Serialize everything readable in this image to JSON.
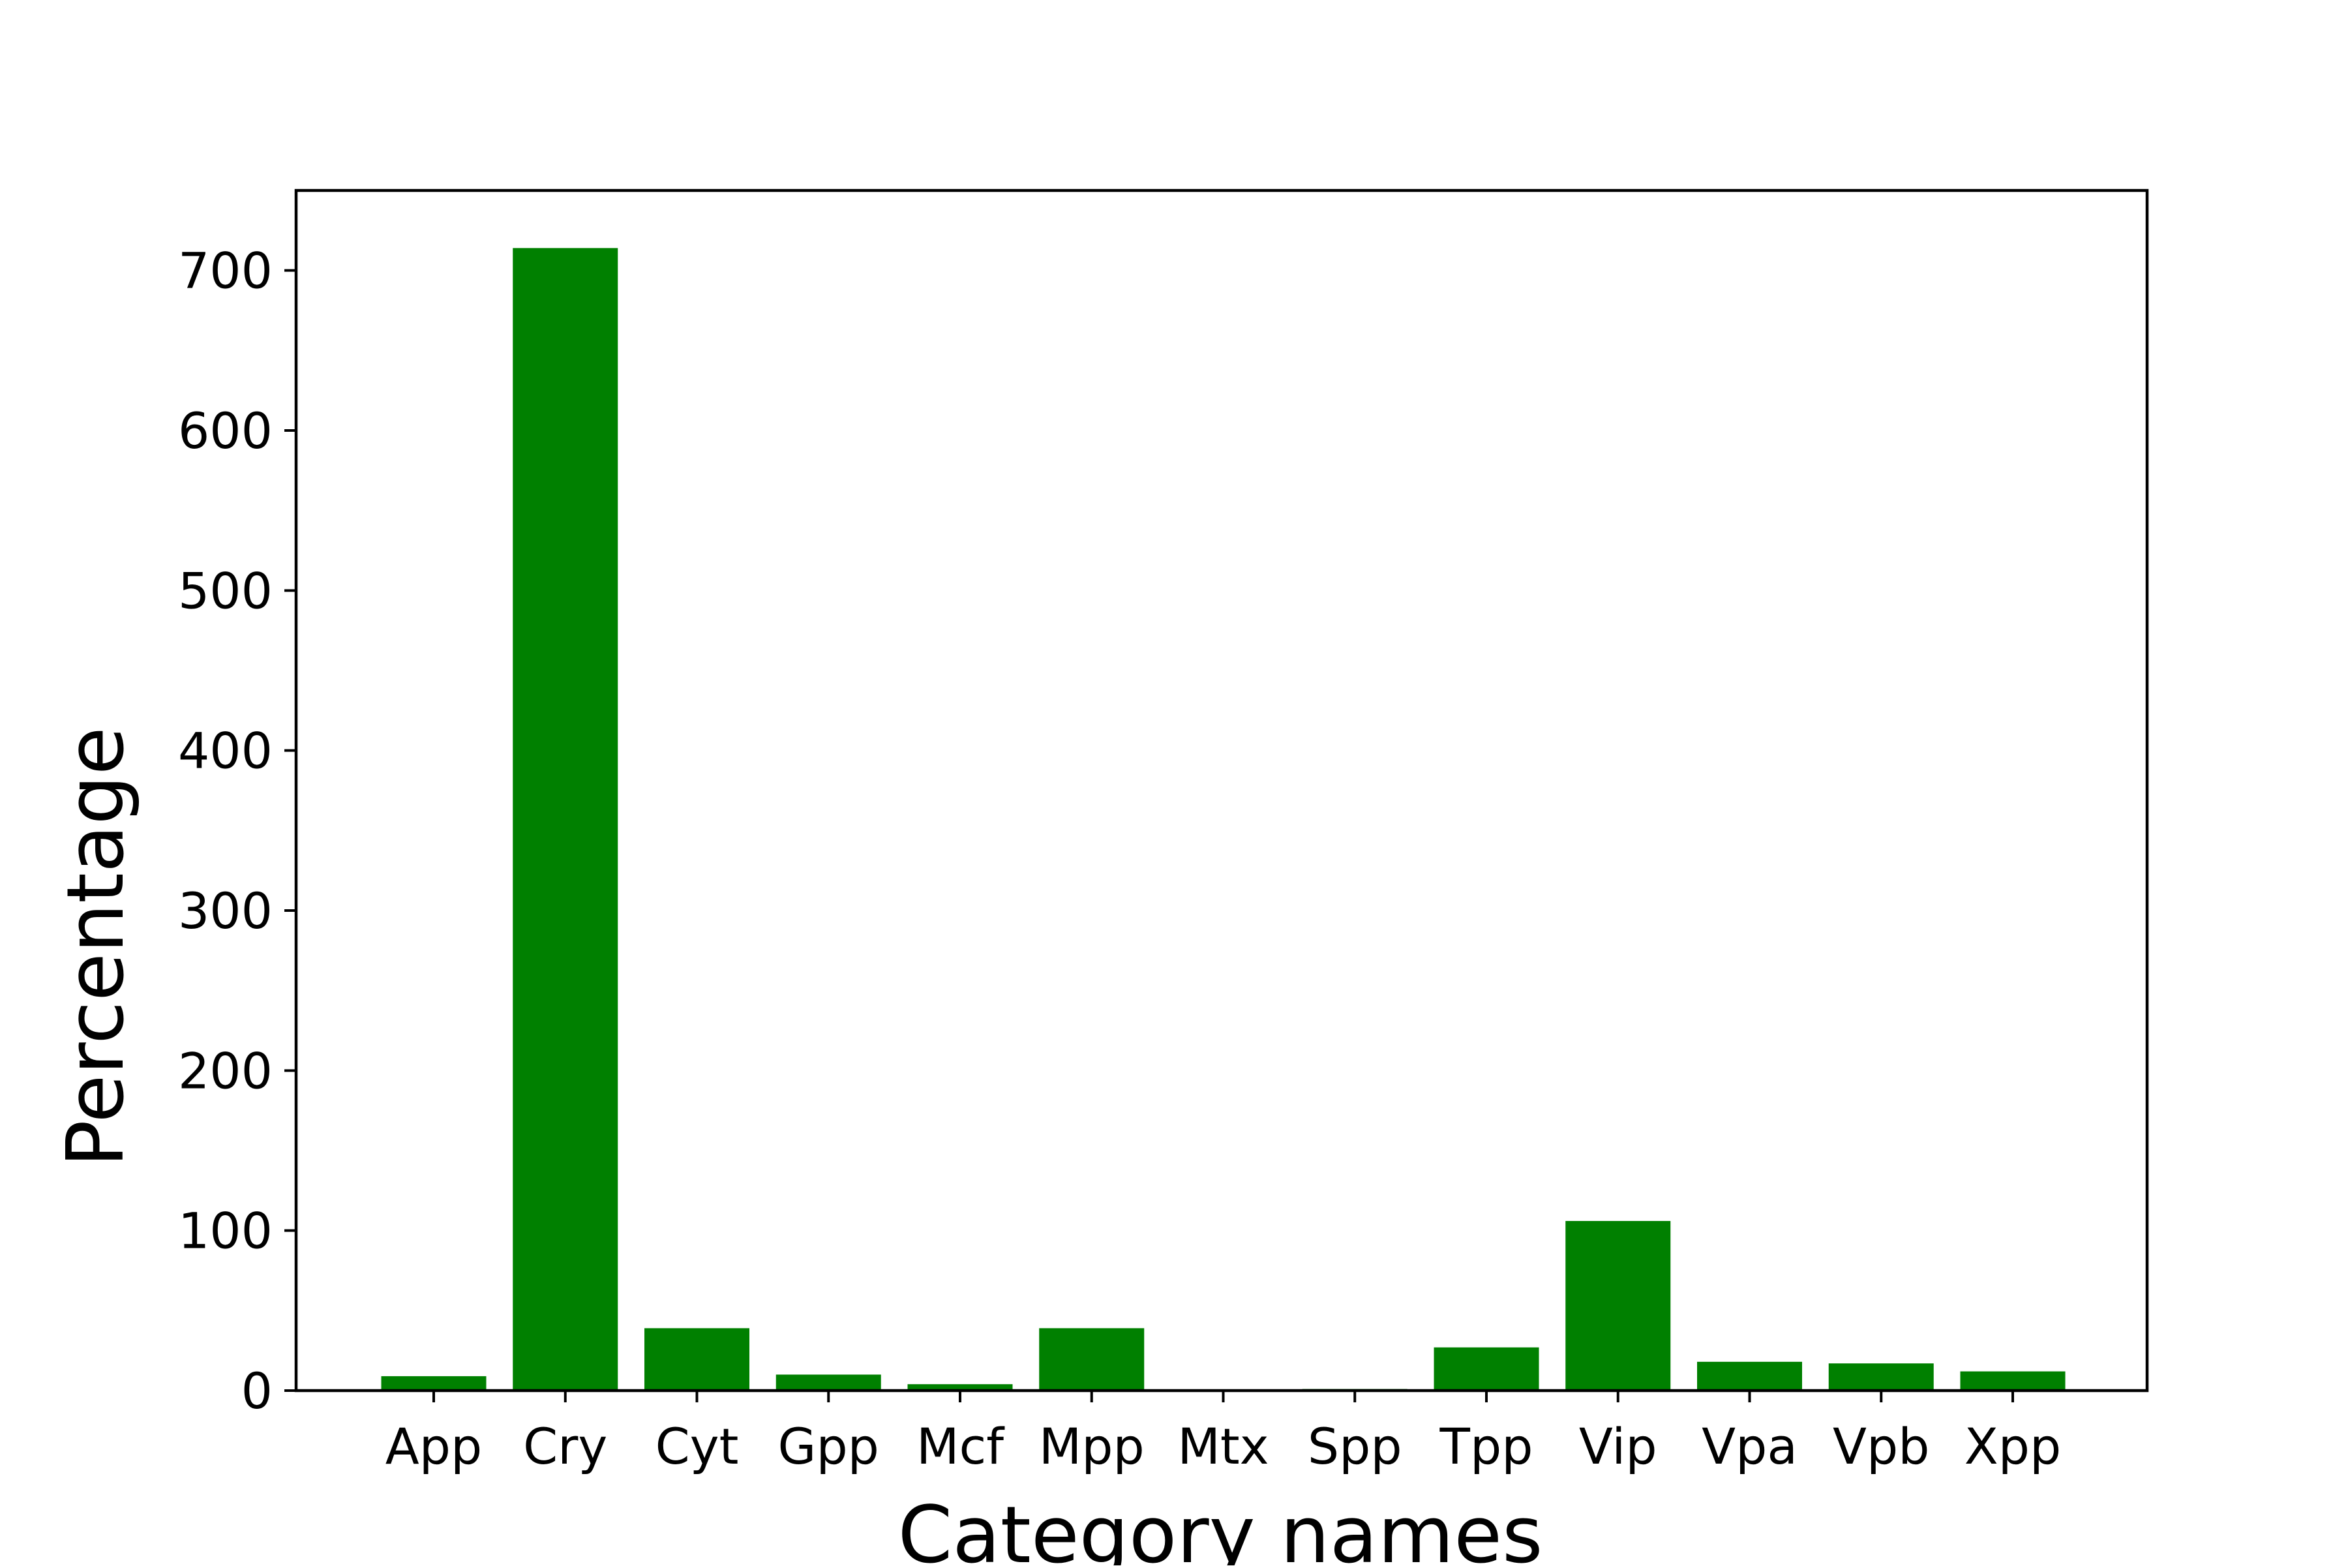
{
  "chart_data": {
    "type": "bar",
    "categories": [
      "App",
      "Cry",
      "Cyt",
      "Gpp",
      "Mcf",
      "Mpp",
      "Mtx",
      "Spp",
      "Tpp",
      "Vip",
      "Vpa",
      "Vpb",
      "Xpp"
    ],
    "values": [
      9,
      714,
      39,
      10,
      4,
      39,
      0,
      1,
      27,
      106,
      18,
      17,
      12
    ],
    "title": "",
    "xlabel": "Category names",
    "ylabel": "Percentage",
    "ylim": [
      0,
      750
    ],
    "yticks": [
      0,
      100,
      200,
      300,
      400,
      500,
      600,
      700
    ],
    "bar_color": "#008000",
    "grid": false,
    "legend": "none"
  }
}
